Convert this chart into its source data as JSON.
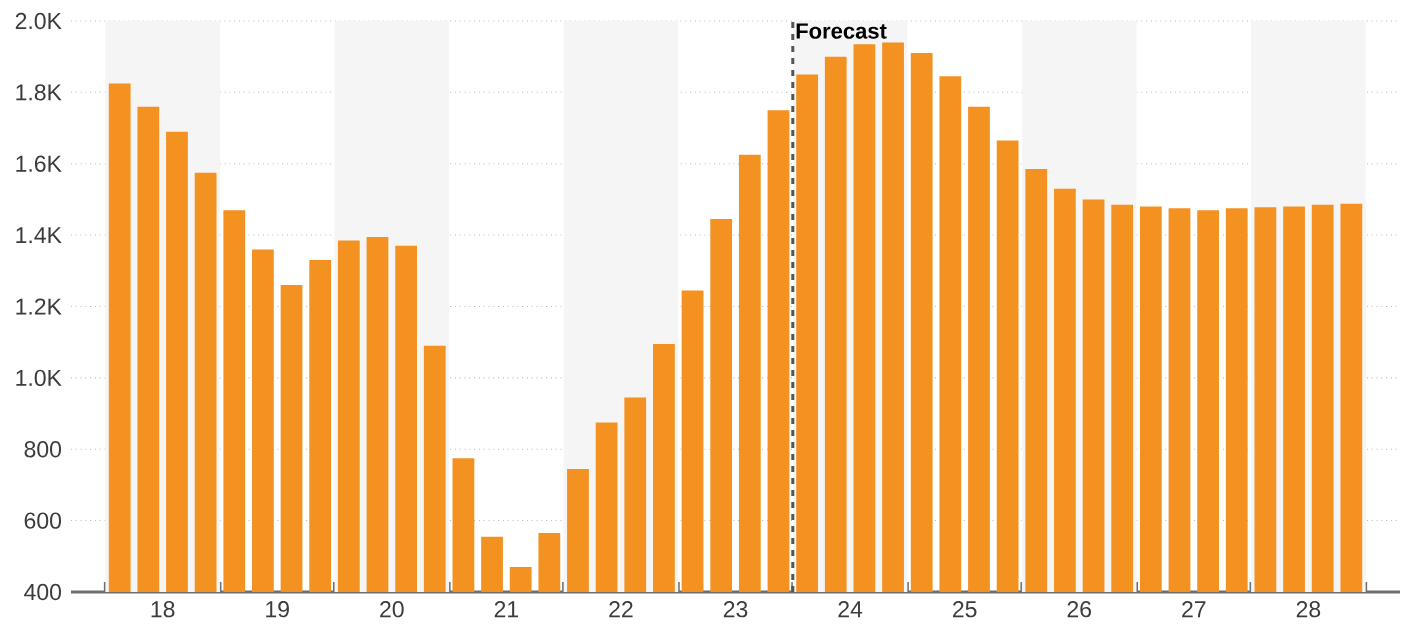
{
  "chart_data": {
    "type": "bar",
    "x": [
      18.125,
      18.375,
      18.625,
      18.875,
      19.125,
      19.375,
      19.625,
      19.875,
      20.125,
      20.375,
      20.625,
      20.875,
      21.125,
      21.375,
      21.625,
      21.875,
      22.125,
      22.375,
      22.625,
      22.875,
      23.125,
      23.375,
      23.625,
      23.875,
      24.125,
      24.375,
      24.625,
      24.875,
      25.125,
      25.375,
      25.625,
      25.875,
      26.125,
      26.375,
      26.625,
      26.875,
      27.125,
      27.375,
      27.625,
      27.875,
      28.125,
      28.375,
      28.625,
      28.875
    ],
    "values": [
      1825,
      1760,
      1690,
      1575,
      1470,
      1360,
      1260,
      1330,
      1385,
      1395,
      1370,
      1090,
      775,
      555,
      470,
      565,
      745,
      875,
      945,
      1095,
      1245,
      1445,
      1625,
      1750,
      1850,
      1900,
      1935,
      1940,
      1910,
      1845,
      1760,
      1665,
      1585,
      1530,
      1500,
      1485,
      1480,
      1475,
      1470,
      1475,
      1478,
      1480,
      1485,
      1488
    ],
    "color": "#f39121",
    "xlim": [
      17.7,
      29.3
    ],
    "xticks": [
      {
        "value": 18,
        "label": null
      },
      {
        "value": 18.5,
        "label": "18"
      },
      {
        "value": 19,
        "label": null
      },
      {
        "value": 19.5,
        "label": "19"
      },
      {
        "value": 20,
        "label": null
      },
      {
        "value": 20.5,
        "label": "20"
      },
      {
        "value": 21,
        "label": null
      },
      {
        "value": 21.5,
        "label": "21"
      },
      {
        "value": 22,
        "label": null
      },
      {
        "value": 22.5,
        "label": "22"
      },
      {
        "value": 23,
        "label": null
      },
      {
        "value": 23.5,
        "label": "23"
      },
      {
        "value": 24,
        "label": null
      },
      {
        "value": 24.5,
        "label": "24"
      },
      {
        "value": 25,
        "label": null
      },
      {
        "value": 25.5,
        "label": "25"
      },
      {
        "value": 26,
        "label": null
      },
      {
        "value": 26.5,
        "label": "26"
      },
      {
        "value": 27,
        "label": null
      },
      {
        "value": 27.5,
        "label": "27"
      },
      {
        "value": 28,
        "label": null
      },
      {
        "value": 28.5,
        "label": "28"
      },
      {
        "value": 29,
        "label": null
      }
    ],
    "ylim": [
      400,
      2000
    ],
    "yticks": [
      400,
      600,
      800,
      {
        "value": 1000,
        "label": "1.0K"
      },
      {
        "value": 1200,
        "label": "1.2K"
      },
      {
        "value": 1400,
        "label": "1.4K"
      },
      {
        "value": 1600,
        "label": "1.6K"
      },
      {
        "value": 1800,
        "label": "1.8K"
      },
      {
        "value": 2000,
        "label": "2.0K"
      }
    ],
    "grid": "y",
    "ref_lines": [
      {
        "axis": "x",
        "value": 24,
        "label": "Forecast",
        "color": "#555555",
        "line_style": "dashed"
      }
    ],
    "bands": [
      {
        "axis": "x",
        "from": 18,
        "to": 19,
        "color": "#f5f5f5"
      },
      {
        "axis": "x",
        "from": 20,
        "to": 21,
        "color": "#f5f5f5"
      },
      {
        "axis": "x",
        "from": 22,
        "to": 23,
        "color": "#f5f5f5"
      },
      {
        "axis": "x",
        "from": 24,
        "to": 25,
        "color": "#f5f5f5"
      },
      {
        "axis": "x",
        "from": 26,
        "to": 27,
        "color": "#f5f5f5"
      },
      {
        "axis": "x",
        "from": 28,
        "to": 29,
        "color": "#f5f5f5"
      }
    ]
  }
}
